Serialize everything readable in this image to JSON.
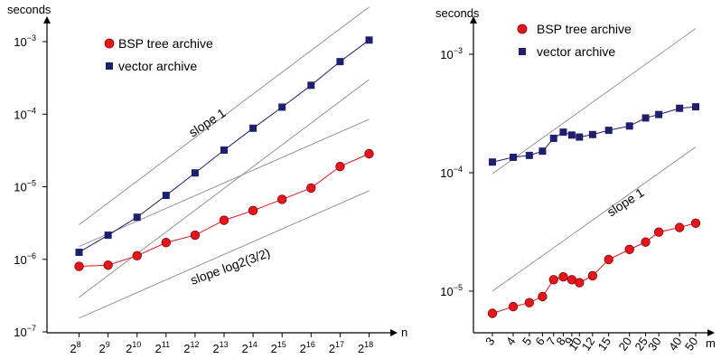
{
  "chart_data": [
    {
      "type": "line",
      "yscale": "log",
      "ylabel": "seconds",
      "xlabel": "n",
      "ylim": [
        1e-07,
        0.001
      ],
      "y_tick_labels": [
        {
          "value": 1e-07,
          "base": "10",
          "exp": "−7"
        },
        {
          "value": 1e-06,
          "base": "10",
          "exp": "−6"
        },
        {
          "value": 1e-05,
          "base": "10",
          "exp": "−5"
        },
        {
          "value": 0.0001,
          "base": "10",
          "exp": "−4"
        },
        {
          "value": 0.001,
          "base": "10",
          "exp": "−3"
        }
      ],
      "x": [
        8,
        9,
        10,
        11,
        12,
        13,
        14,
        15,
        16,
        17,
        18
      ],
      "x_tick_labels": [
        {
          "base": "2",
          "exp": "8"
        },
        {
          "base": "2",
          "exp": "9"
        },
        {
          "base": "2",
          "exp": "10"
        },
        {
          "base": "2",
          "exp": "11"
        },
        {
          "base": "2",
          "exp": "12"
        },
        {
          "base": "2",
          "exp": "13"
        },
        {
          "base": "2",
          "exp": "14"
        },
        {
          "base": "2",
          "exp": "15"
        },
        {
          "base": "2",
          "exp": "16"
        },
        {
          "base": "2",
          "exp": "17"
        },
        {
          "base": "2",
          "exp": "18"
        }
      ],
      "series": [
        {
          "name": "BSP tree archive",
          "marker": "circle",
          "color": "#e8141c",
          "values": [
            8e-07,
            8.3e-07,
            1.12e-06,
            1.7e-06,
            2.15e-06,
            3.45e-06,
            4.7e-06,
            6.7e-06,
            9.6e-06,
            1.9e-05,
            2.85e-05
          ]
        },
        {
          "name": "vector archive",
          "marker": "square",
          "color": "#1f1f6e",
          "values": [
            1.25e-06,
            2.15e-06,
            3.8e-06,
            7.6e-06,
            1.55e-05,
            3.2e-05,
            6.4e-05,
            0.000125,
            0.00025,
            0.00053,
            0.00105
          ]
        }
      ],
      "reference_lines": [
        {
          "label": "slope 1",
          "from": [
            8,
            3e-06
          ],
          "to": [
            18,
            0.003
          ]
        },
        {
          "label": "",
          "from": [
            8,
            3e-07
          ],
          "to": [
            18,
            0.0003
          ]
        },
        {
          "label": "slope log2(3/2)",
          "from": [
            8,
            1.55e-07
          ],
          "to": [
            18,
            8.8e-06
          ]
        },
        {
          "label": "",
          "from": [
            8,
            1.5e-06
          ],
          "to": [
            18,
            8.5e-05
          ]
        }
      ]
    },
    {
      "type": "line",
      "yscale": "log",
      "xscale": "log",
      "ylabel": "seconds",
      "xlabel": "m",
      "ylim": [
        5e-06,
        0.0015
      ],
      "y_tick_labels": [
        {
          "value": 1e-05,
          "base": "10",
          "exp": "−5"
        },
        {
          "value": 0.0001,
          "base": "10",
          "exp": "−4"
        },
        {
          "value": 0.001,
          "base": "10",
          "exp": "−3"
        }
      ],
      "x": [
        3,
        4,
        5,
        6,
        7,
        8,
        9,
        10,
        12,
        15,
        20,
        25,
        30,
        40,
        50
      ],
      "x_tick_labels": [
        "3",
        "4",
        "5",
        "6",
        "7",
        "8",
        "9",
        "10",
        "12",
        "15",
        "20",
        "25",
        "30",
        "40",
        "50"
      ],
      "series": [
        {
          "name": "BSP tree archive",
          "marker": "circle",
          "color": "#e8141c",
          "values": [
            6.5e-06,
            7.4e-06,
            8e-06,
            9e-06,
            1.25e-05,
            1.32e-05,
            1.25e-05,
            1.18e-05,
            1.35e-05,
            1.85e-05,
            2.25e-05,
            2.6e-05,
            3.15e-05,
            3.45e-05,
            3.75e-05
          ]
        },
        {
          "name": "vector archive",
          "marker": "square",
          "color": "#1f1f6e",
          "values": [
            0.000123,
            0.000135,
            0.00014,
            0.000152,
            0.000195,
            0.00022,
            0.000208,
            0.0002,
            0.00021,
            0.000228,
            0.000248,
            0.00029,
            0.00031,
            0.00035,
            0.00036
          ]
        }
      ],
      "reference_lines": [
        {
          "label": "",
          "from": [
            3,
            9.8e-05
          ],
          "to": [
            50,
            0.00165
          ]
        },
        {
          "label": "slope 1",
          "from": [
            3,
            1e-05
          ],
          "to": [
            50,
            0.000165
          ]
        }
      ]
    }
  ]
}
